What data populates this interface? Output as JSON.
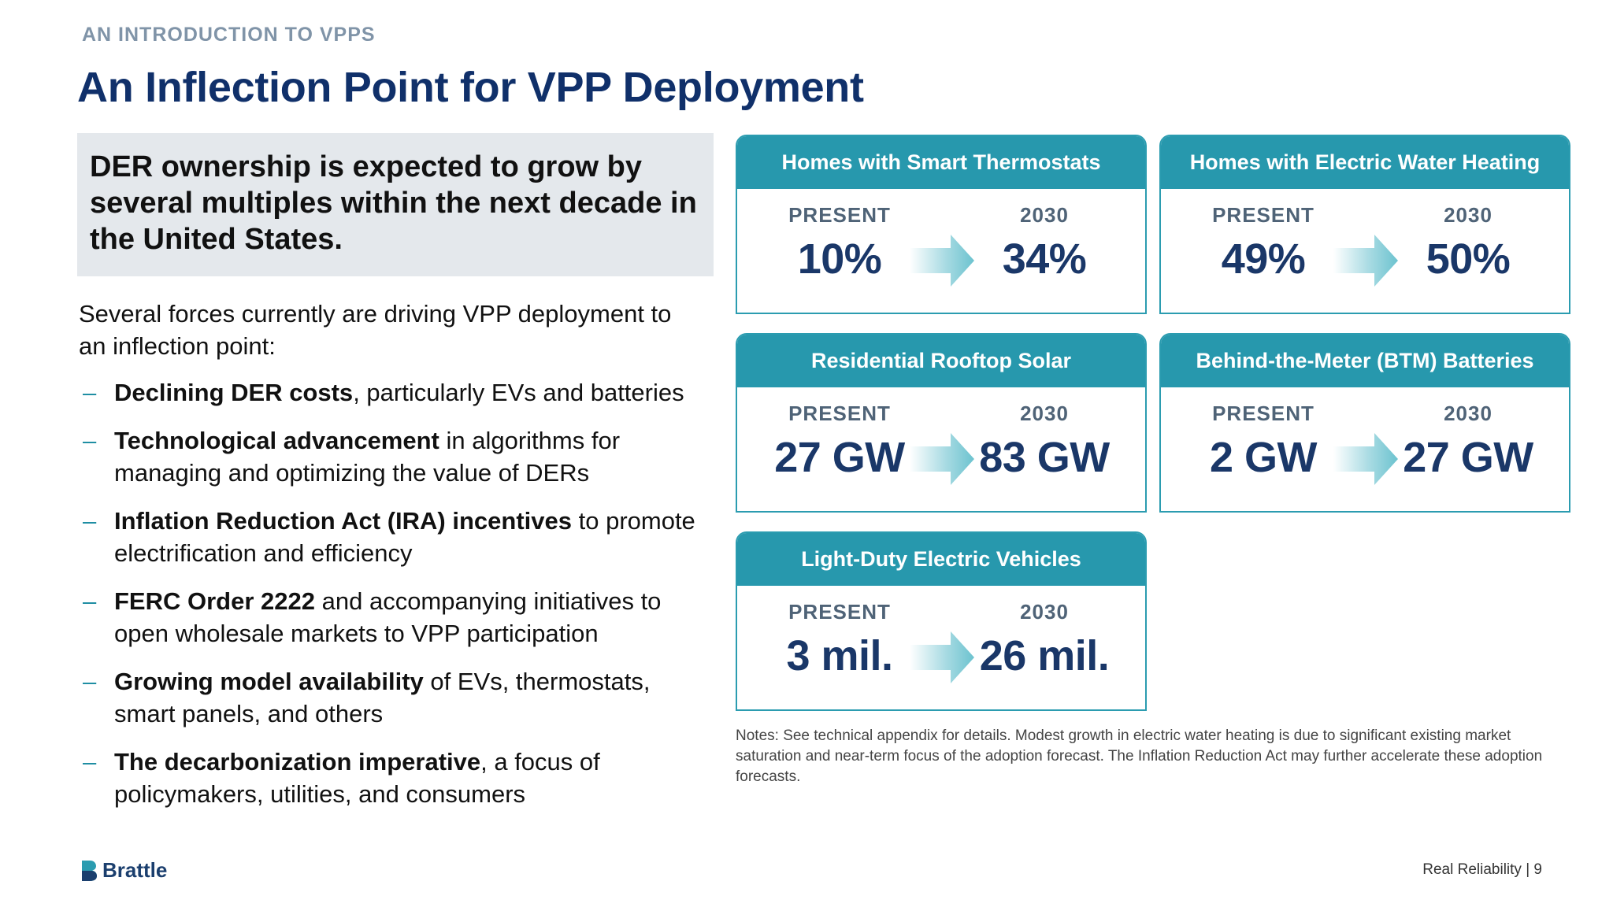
{
  "header": {
    "kicker": "AN INTRODUCTION TO VPPS",
    "title": "An Inflection Point for VPP Deployment"
  },
  "callout": "DER ownership is expected to grow by several multiples within the next decade in the United States.",
  "intro": "Several forces currently are driving VPP deployment to an inflection point:",
  "bullets": [
    {
      "bold": "Declining DER costs",
      "rest": ", particularly EVs and batteries"
    },
    {
      "bold": "Technological advancement",
      "rest": " in algorithms for managing and optimizing the value of DERs"
    },
    {
      "bold": "Inflation Reduction Act (IRA) incentives",
      "rest": " to promote electrification and efficiency"
    },
    {
      "bold": "FERC Order 2222",
      "rest": " and accompanying initiatives to open wholesale markets to VPP participation"
    },
    {
      "bold": "Growing model availability",
      "rest": " of EVs, thermostats, smart panels, and others"
    },
    {
      "bold": "The decarbonization imperative",
      "rest": ", a focus of policymakers, utilities, and consumers"
    }
  ],
  "labels": {
    "present": "PRESENT",
    "future": "2030"
  },
  "cards": [
    {
      "title": "Homes with Smart Thermostats",
      "present": "10%",
      "future": "34%"
    },
    {
      "title": "Homes with Electric Water Heating",
      "present": "49%",
      "future": "50%"
    },
    {
      "title": "Residential Rooftop Solar",
      "present": "27 GW",
      "future": "83 GW"
    },
    {
      "title": "Behind-the-Meter (BTM) Batteries",
      "present": "2 GW",
      "future": "27 GW"
    },
    {
      "title": "Light-Duty Electric Vehicles",
      "present": "3 mil.",
      "future": "26 mil."
    }
  ],
  "notes": "Notes: See technical appendix for details. Modest growth in electric water heating is due to significant existing market saturation and near-term focus of the adoption forecast. The Inflation Reduction Act may further accelerate these adoption forecasts.",
  "footer": {
    "logo_text": "Brattle",
    "page_label": "Real Reliability | 9"
  },
  "colors": {
    "title": "#10306a",
    "accent": "#2798ad",
    "value": "#1a3768",
    "callout_bg": "#e4e8ec"
  },
  "icons": [
    "arrow-right-icon",
    "brattle-logo-icon"
  ]
}
